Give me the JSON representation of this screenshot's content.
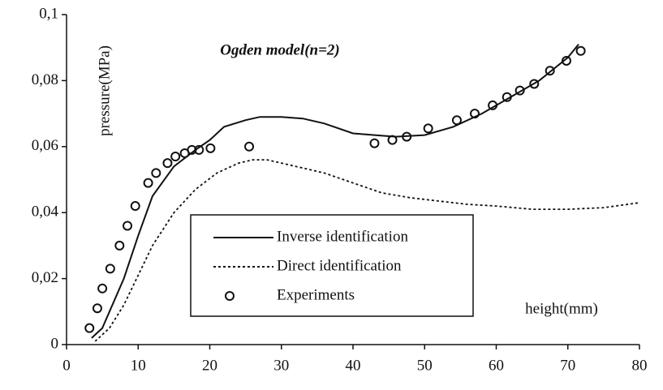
{
  "chart_data": {
    "type": "line",
    "title": "Ogden model(n=2)",
    "y_label": "pressure(MPa)",
    "x_label": "height(mm)",
    "xlim": [
      0,
      80
    ],
    "xticks": [
      0,
      10,
      20,
      30,
      40,
      50,
      60,
      70,
      80
    ],
    "ylim": [
      0,
      0.1
    ],
    "yticks": [
      0,
      {
        "value": 0.02,
        "label": "0,02"
      },
      {
        "value": 0.04,
        "label": "0,04"
      },
      {
        "value": 0.06,
        "label": "0,06"
      },
      {
        "value": 0.08,
        "label": "0,08"
      },
      {
        "value": 0.1,
        "label": "0,1"
      }
    ],
    "legend": "center",
    "series": [
      {
        "name": "Inverse identification",
        "color": "#111111",
        "style": "solid",
        "x": [
          3.5,
          5,
          8,
          10,
          12,
          15,
          18,
          20,
          22,
          25,
          27,
          30,
          33,
          36,
          40,
          43,
          46,
          50,
          54,
          58,
          62,
          66,
          70,
          71.5
        ],
        "values": [
          0.002,
          0.005,
          0.02,
          0.033,
          0.045,
          0.054,
          0.059,
          0.062,
          0.066,
          0.068,
          0.069,
          0.069,
          0.0685,
          0.067,
          0.064,
          0.0635,
          0.063,
          0.0635,
          0.066,
          0.07,
          0.075,
          0.08,
          0.087,
          0.091
        ]
      },
      {
        "name": "Direct identification",
        "color": "#111111",
        "style": "dotted",
        "x": [
          4,
          6,
          8,
          10,
          12,
          15,
          18,
          21,
          24,
          26,
          28,
          32,
          36,
          40,
          44,
          48,
          52,
          56,
          60,
          65,
          70,
          75,
          80
        ],
        "values": [
          0.001,
          0.005,
          0.012,
          0.021,
          0.03,
          0.04,
          0.047,
          0.052,
          0.055,
          0.056,
          0.056,
          0.054,
          0.052,
          0.049,
          0.046,
          0.0445,
          0.0435,
          0.0425,
          0.042,
          0.041,
          0.041,
          0.0415,
          0.043
        ]
      },
      {
        "name": "Experiments",
        "color": "#111111",
        "style": "markers",
        "x": [
          3.2,
          4.3,
          5.0,
          6.1,
          7.4,
          8.5,
          9.6,
          11.4,
          12.5,
          14.1,
          15.2,
          16.5,
          17.5,
          18.5,
          20.1,
          25.5,
          43,
          45.5,
          47.5,
          50.5,
          54.5,
          57,
          59.5,
          61.5,
          63.3,
          65.3,
          67.5,
          69.8,
          71.8
        ],
        "values": [
          0.005,
          0.011,
          0.017,
          0.023,
          0.03,
          0.036,
          0.042,
          0.049,
          0.052,
          0.055,
          0.057,
          0.058,
          0.059,
          0.059,
          0.0595,
          0.06,
          0.061,
          0.062,
          0.063,
          0.0655,
          0.068,
          0.07,
          0.0725,
          0.075,
          0.077,
          0.079,
          0.083,
          0.086,
          0.089
        ]
      }
    ]
  }
}
